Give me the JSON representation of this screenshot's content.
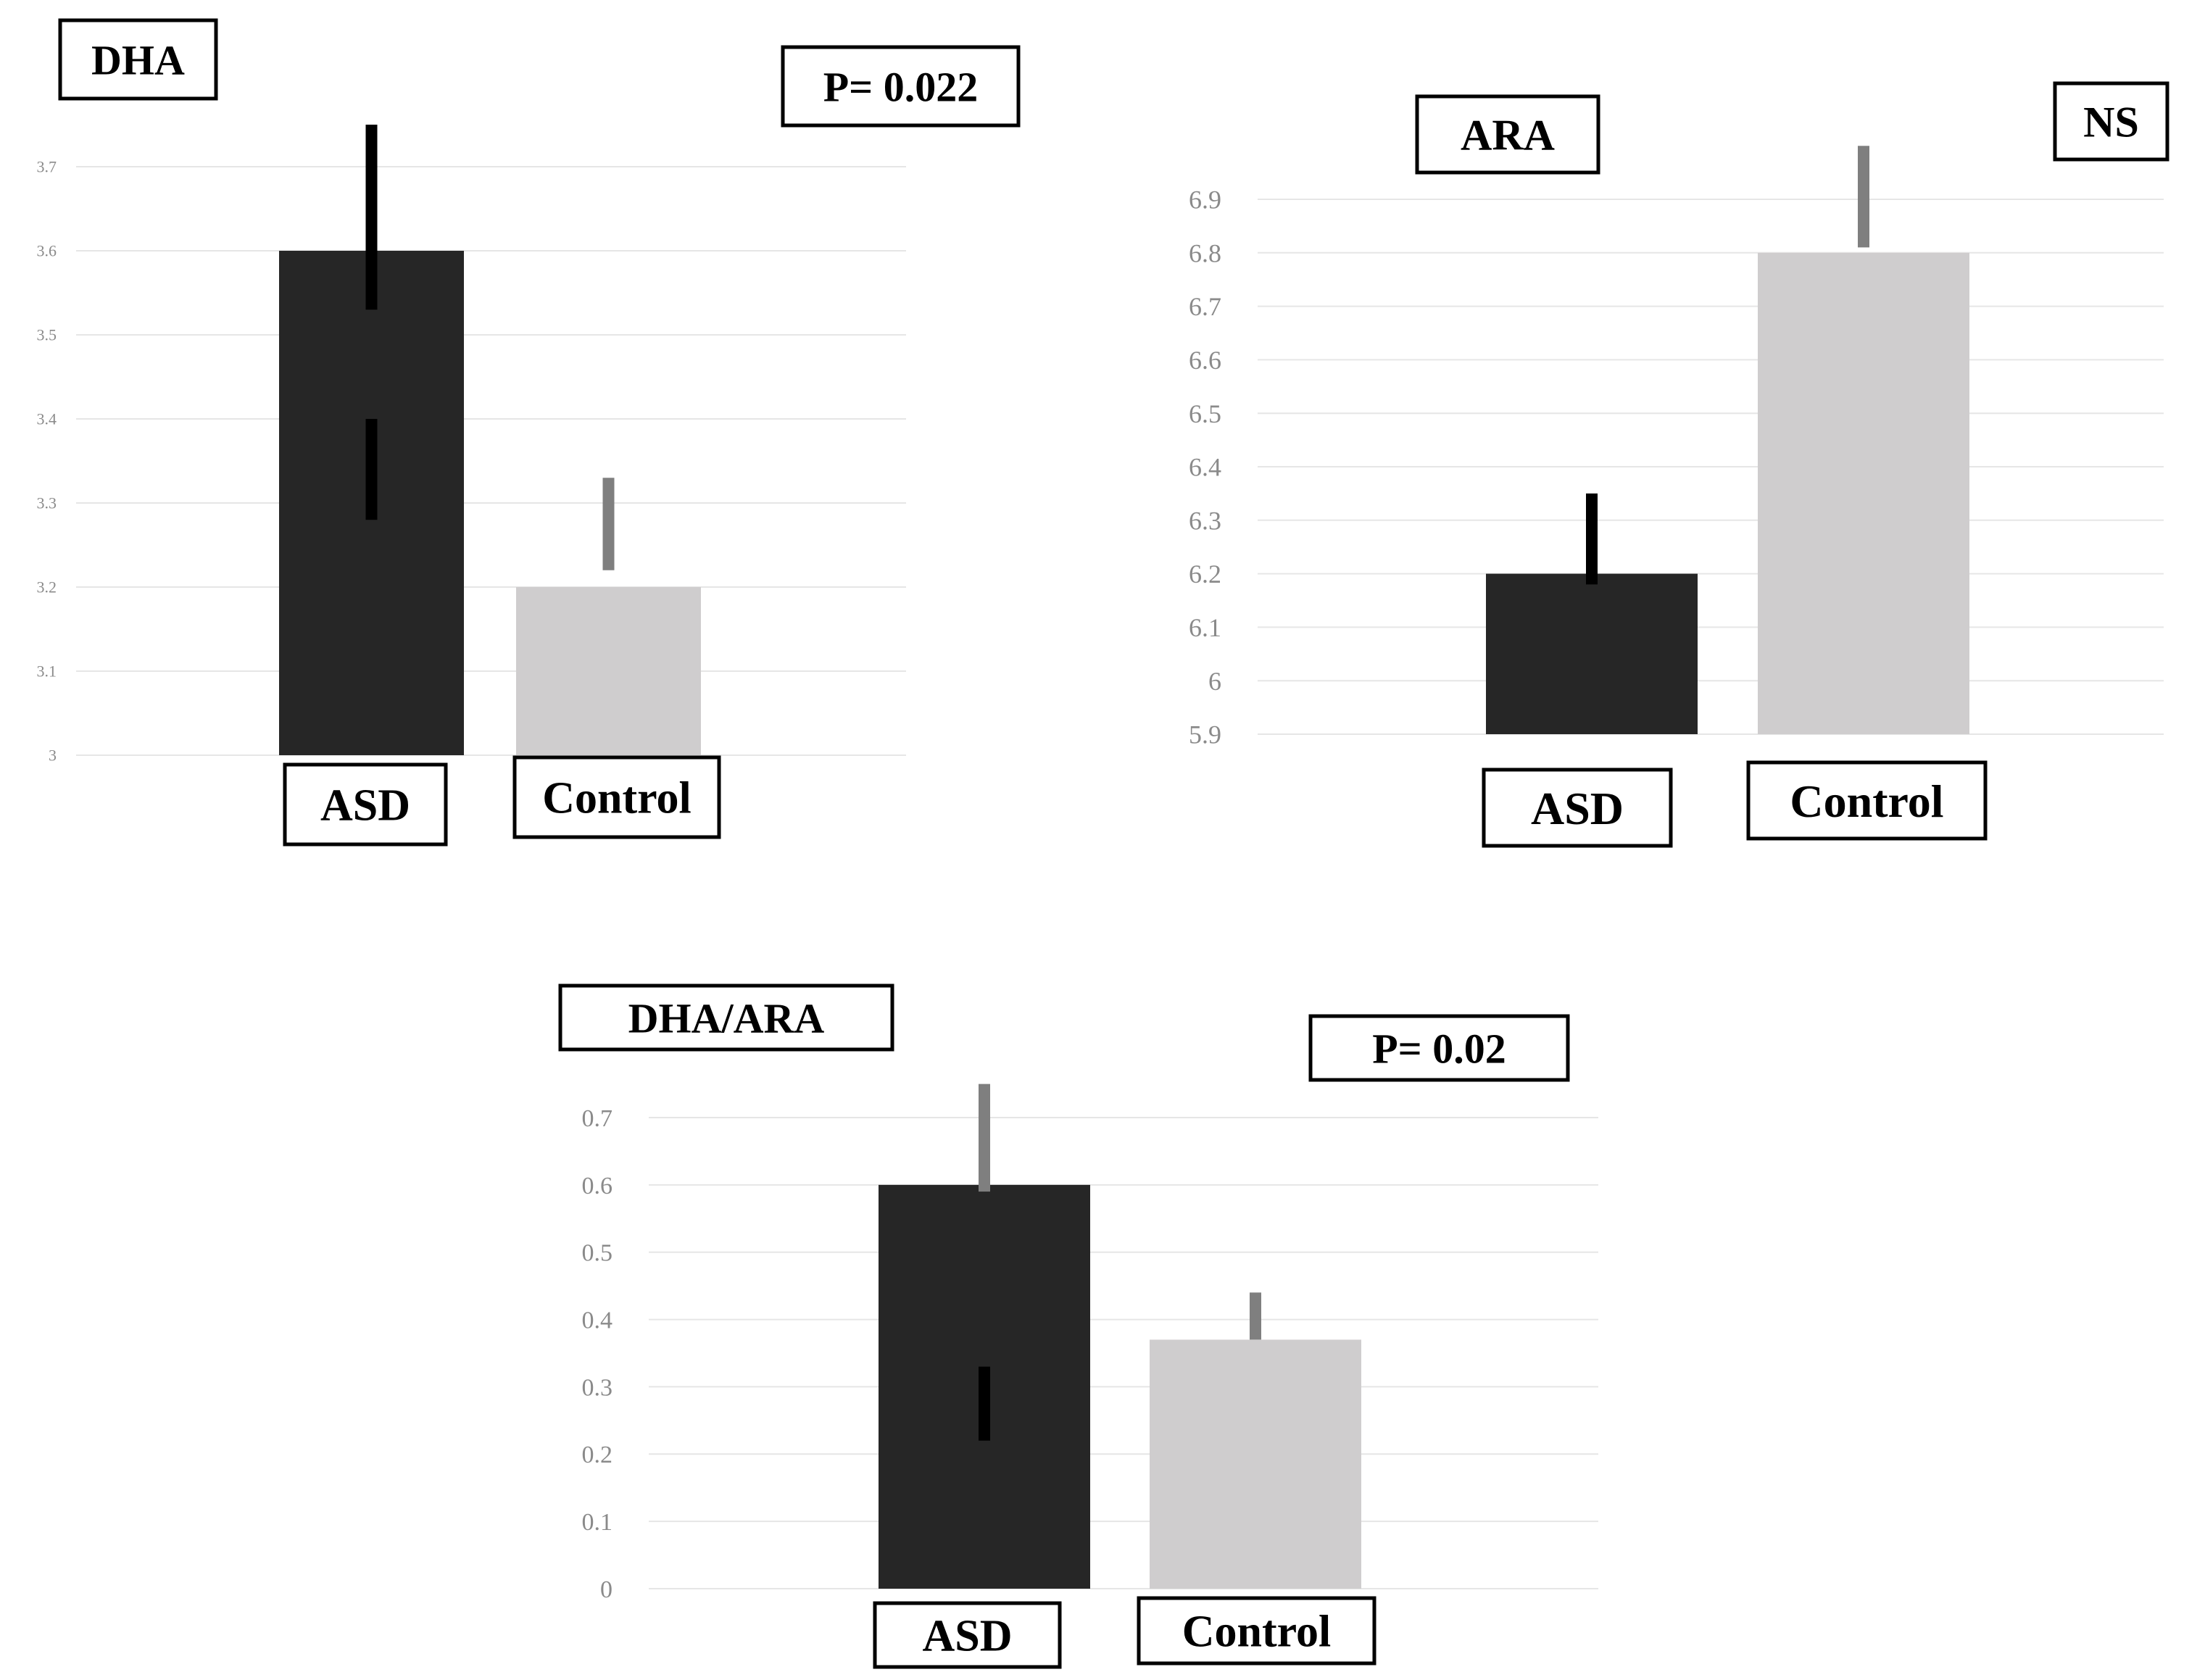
{
  "chart_data": [
    {
      "type": "bar",
      "title": "DHA",
      "annotation": "P= 0.022",
      "categories": [
        "ASD",
        "Control"
      ],
      "values": [
        3.6,
        3.2
      ],
      "error_upper": [
        3.75,
        3.33
      ],
      "error_lower": [
        3.28,
        3.22
      ],
      "colors": [
        "#262626",
        "#cfcdce"
      ],
      "ylim": [
        3,
        3.7
      ],
      "yticks": [
        "3",
        "3.1",
        "3.2",
        "3.3",
        "3.4",
        "3.5",
        "3.6",
        "3.7"
      ],
      "grid": true
    },
    {
      "type": "bar",
      "title": "ARA",
      "annotation": "NS",
      "categories": [
        "ASD",
        "Control"
      ],
      "values": [
        6.2,
        6.8
      ],
      "error_upper": [
        6.35,
        7.0
      ],
      "error_lower": [
        6.18,
        6.81
      ],
      "colors": [
        "#262626",
        "#cfcdce"
      ],
      "ylim": [
        5.9,
        6.9
      ],
      "yticks": [
        "5.9",
        "6",
        "6.1",
        "6.2",
        "6.3",
        "6.4",
        "6.5",
        "6.6",
        "6.7",
        "6.8",
        "6.9"
      ],
      "grid": true
    },
    {
      "type": "bar",
      "title": "DHA/ARA",
      "annotation": "P= 0.02",
      "categories": [
        "ASD",
        "Control"
      ],
      "values": [
        0.6,
        0.37
      ],
      "error_upper": [
        0.75,
        0.44
      ],
      "error_lower": [
        0.22,
        0.37
      ],
      "colors": [
        "#262626",
        "#cfcdce"
      ],
      "ylim": [
        0,
        0.7
      ],
      "yticks": [
        "0",
        "0.1",
        "0.2",
        "0.3",
        "0.4",
        "0.5",
        "0.6",
        "0.7"
      ],
      "grid": true
    }
  ]
}
